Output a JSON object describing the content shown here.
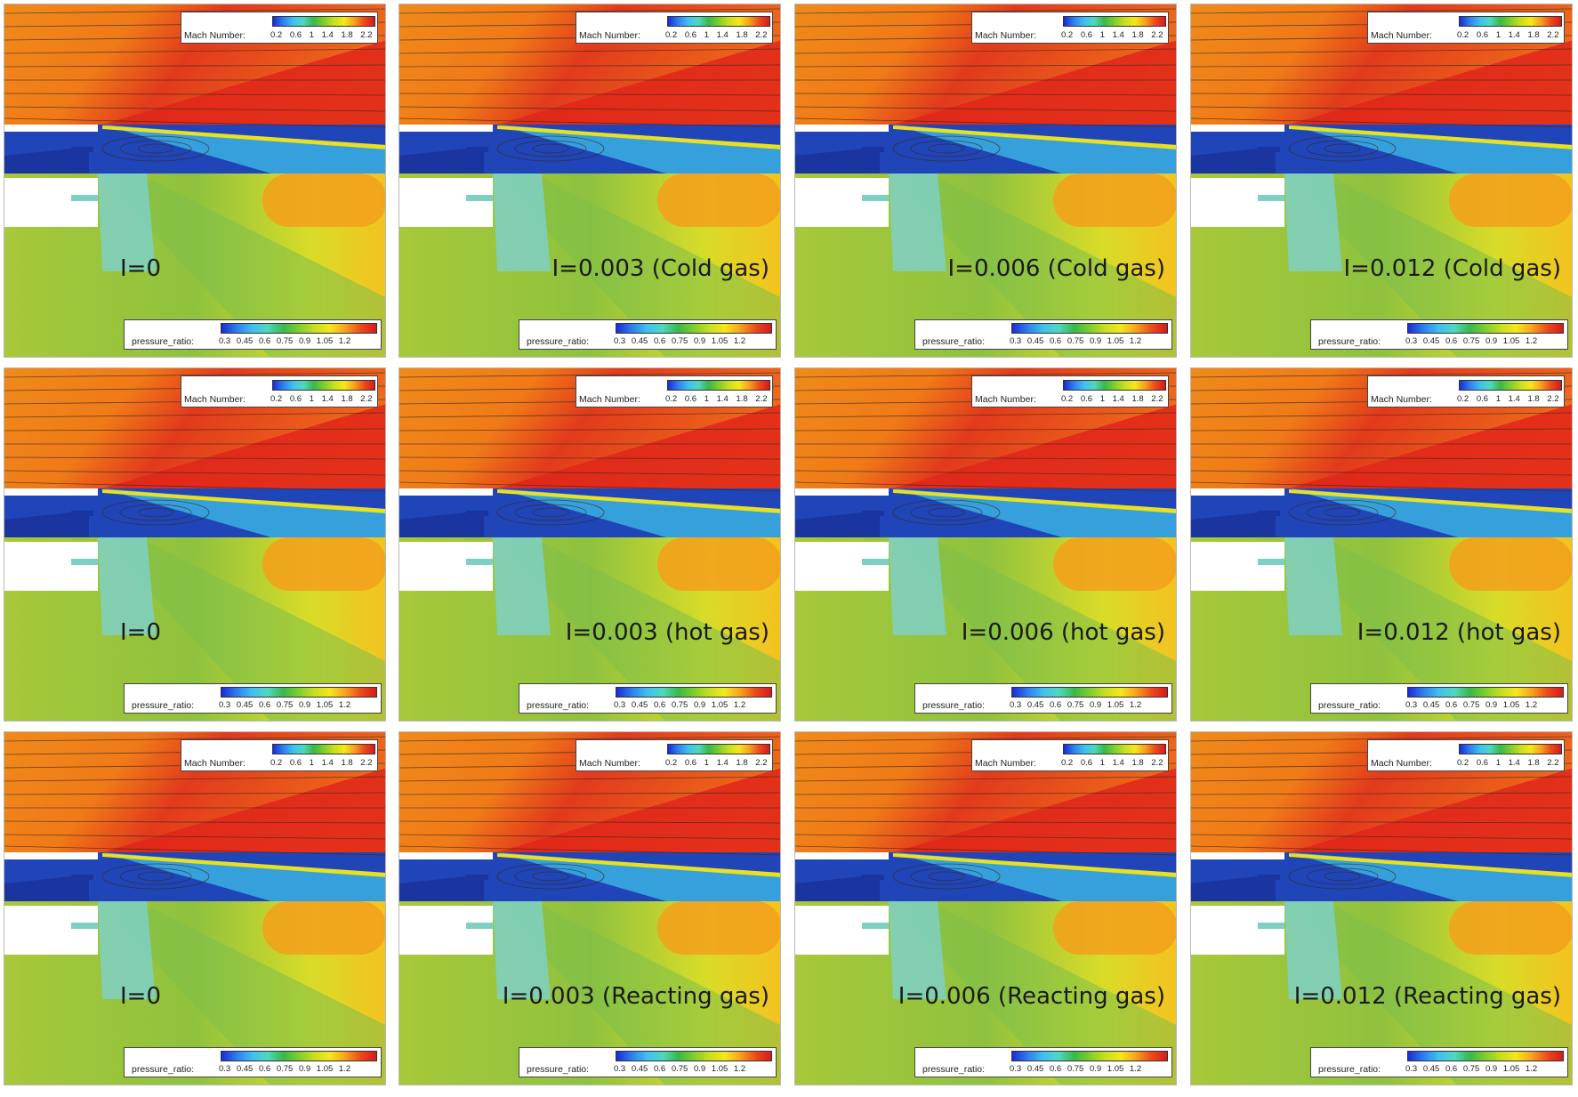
{
  "legends": {
    "mach": {
      "label": "Mach Number:",
      "ticks": "0.2 0.6 1 1.4 1.8 2.2"
    },
    "pressure": {
      "label": "pressure_ratio:",
      "ticks": "0.3 0.45 0.6 0.75 0.9 1.05 1.2"
    }
  },
  "panels": [
    {
      "label": "I=0"
    },
    {
      "label": "I=0.003 (Cold gas)"
    },
    {
      "label": "I=0.006 (Cold gas)"
    },
    {
      "label": "I=0.012 (Cold gas)"
    },
    {
      "label": "I=0"
    },
    {
      "label": "I=0.003 (hot gas)"
    },
    {
      "label": "I=0.006 (hot gas)"
    },
    {
      "label": "I=0.012 (hot gas)"
    },
    {
      "label": "I=0"
    },
    {
      "label": "I=0.003 (Reacting gas)"
    },
    {
      "label": "I=0.006 (Reacting gas)"
    },
    {
      "label": "I=0.012 (Reacting gas)"
    }
  ],
  "colors": {
    "mach_high": "#e8321c",
    "mach_mid": "#f07f18",
    "recirculation": "#1f45b8",
    "pressure_field": "#a9c93a",
    "pressure_low": "#7fd0c4",
    "pressure_high": "#f2a21c"
  }
}
